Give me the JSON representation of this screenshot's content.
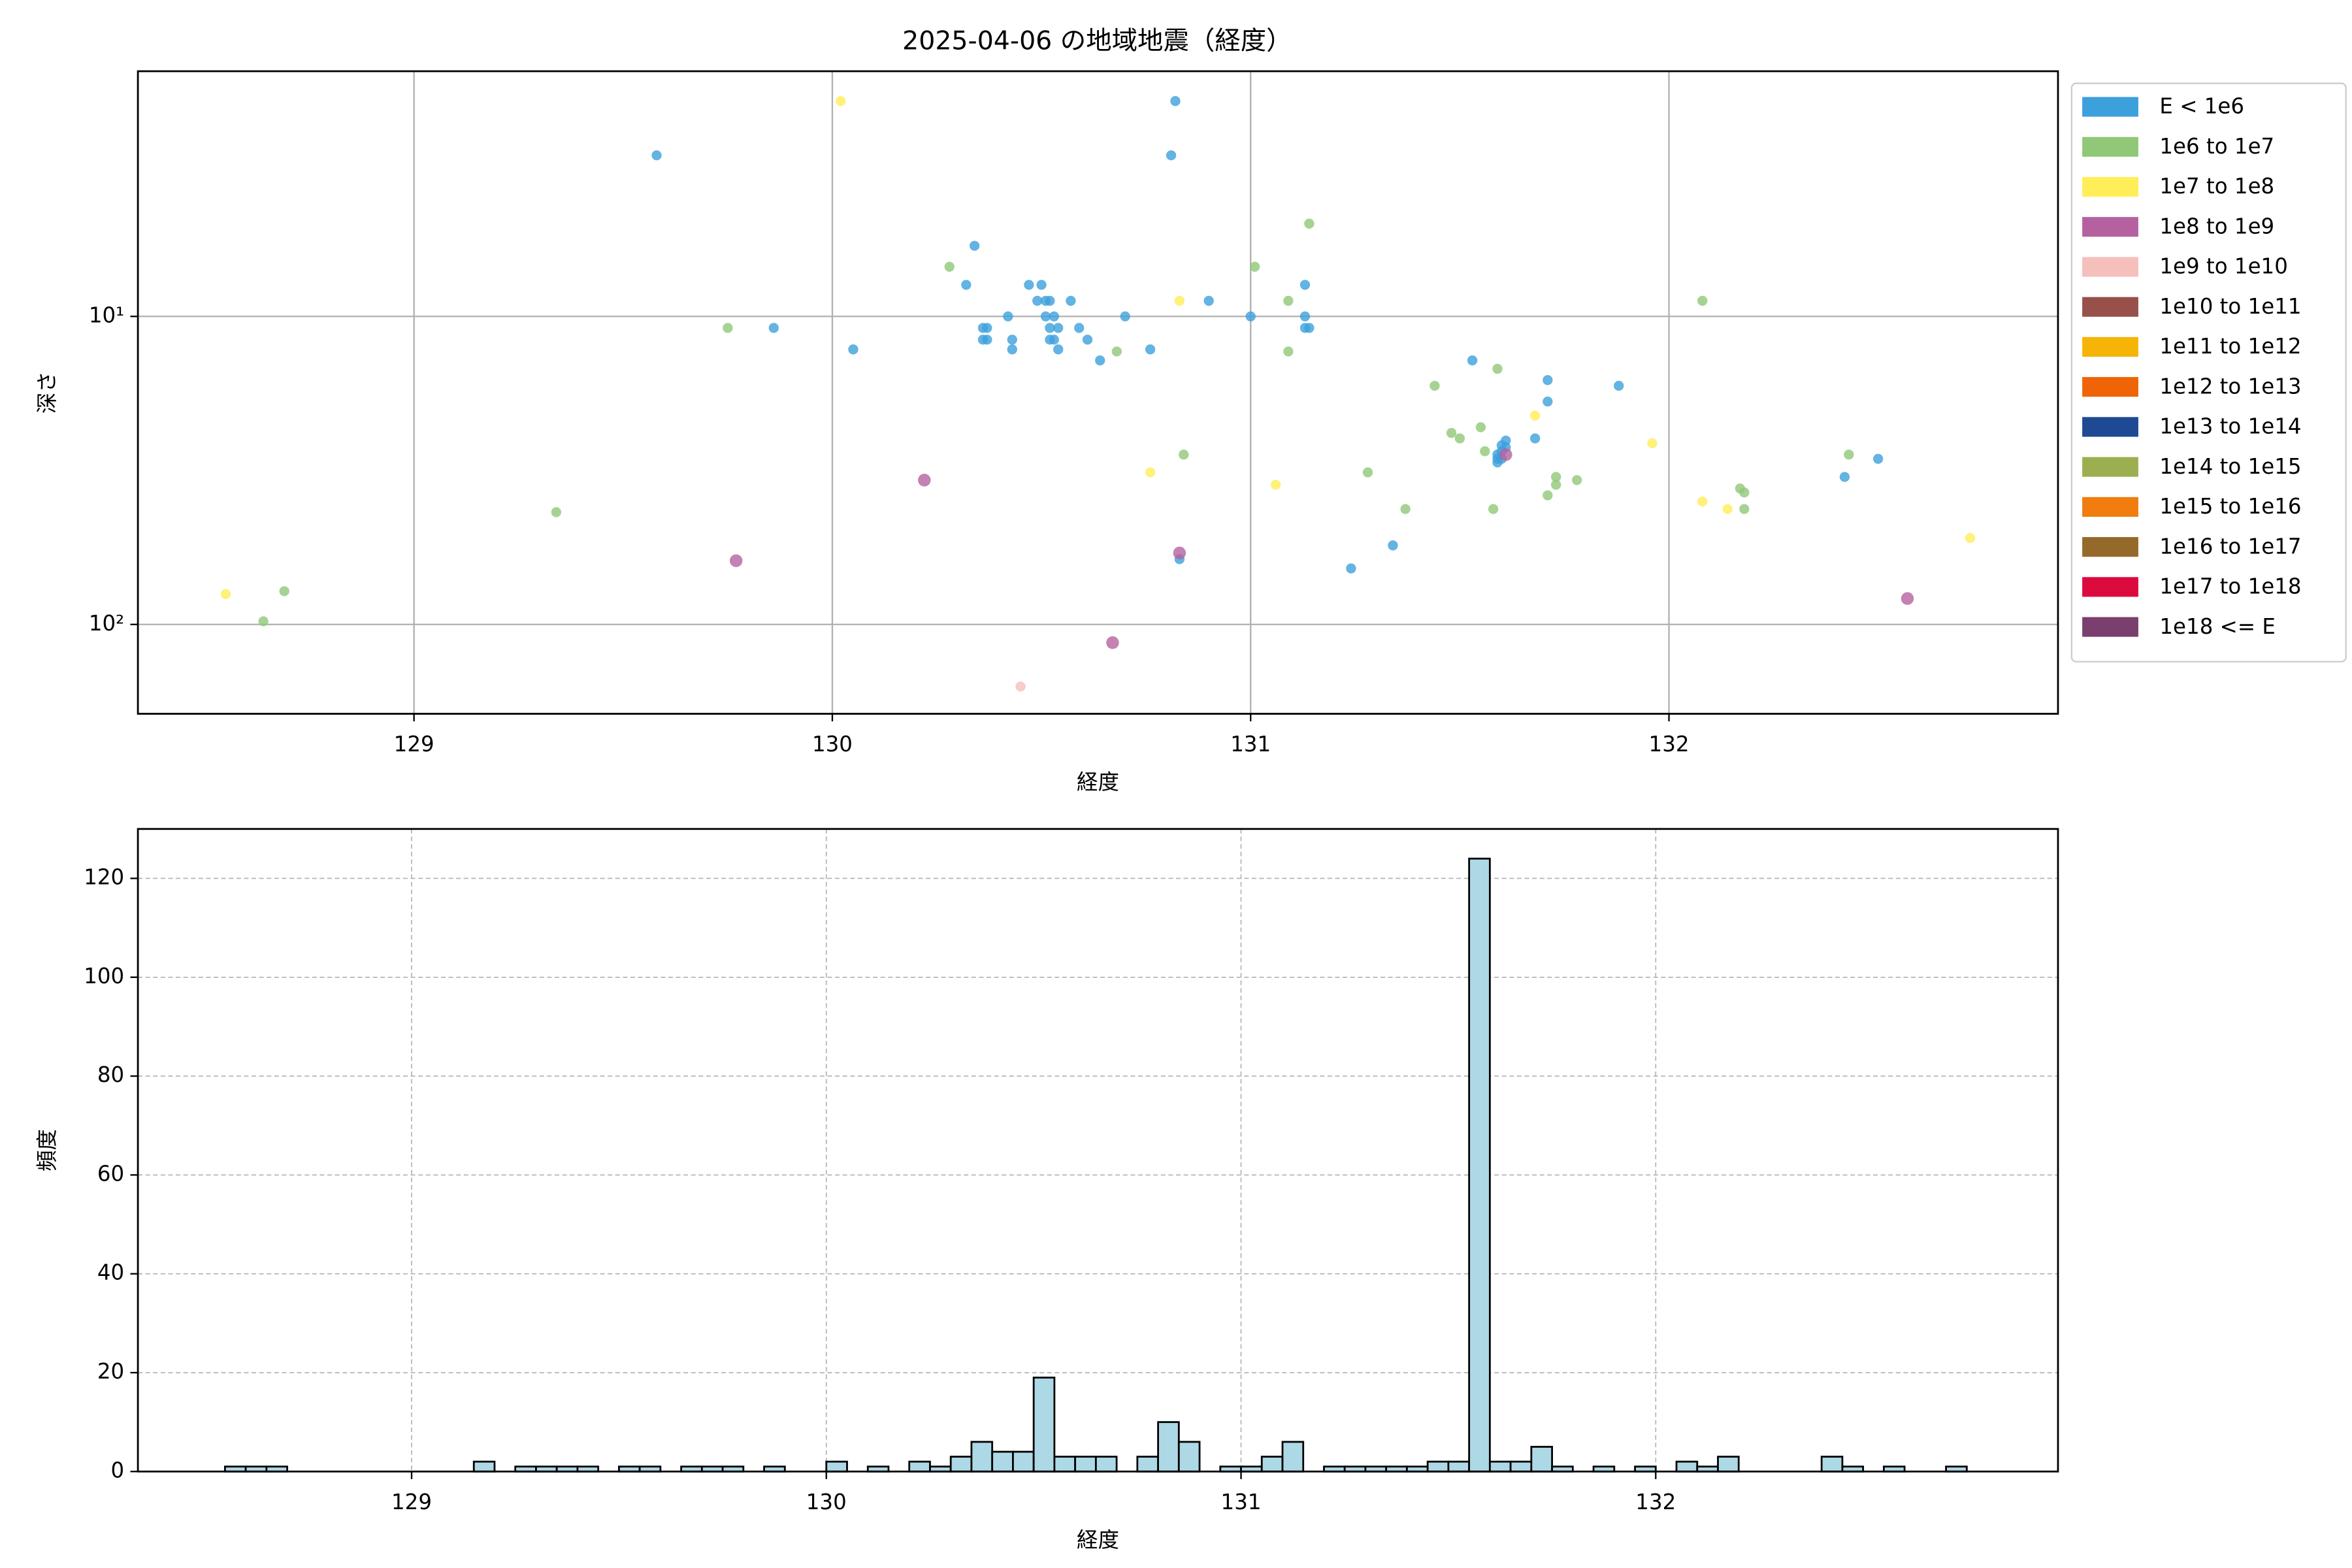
{
  "chart_data": [
    {
      "type": "scatter",
      "title": "2025-04-06 の地域地震（経度）",
      "xlabel": "経度",
      "ylabel": "深さ",
      "xlim": [
        128.34,
        132.93
      ],
      "xticks": [
        129,
        130,
        131,
        132
      ],
      "ylim": [
        195,
        1.6
      ],
      "yticks": [
        {
          "value": 10,
          "label": "10¹"
        },
        {
          "value": 100,
          "label": "10²"
        }
      ],
      "log_y": true,
      "grid": true,
      "legend": "outside right",
      "series": [
        {
          "name": "E < 1e6",
          "color": "#3ca0dc",
          "x": [
            129.58,
            130.82,
            130.81,
            130.34,
            130.32,
            130.36,
            130.37,
            130.36,
            130.37,
            129.86,
            130.05,
            130.42,
            130.43,
            130.43,
            130.47,
            130.5,
            130.49,
            130.51,
            130.52,
            130.51,
            130.53,
            130.52,
            130.54,
            130.52,
            130.53,
            130.54,
            130.57,
            130.59,
            130.61,
            130.64,
            130.7,
            130.76,
            130.9,
            131.0,
            131.13,
            131.13,
            131.13,
            131.14,
            131.24,
            131.34,
            131.53,
            131.61,
            131.59,
            131.6,
            131.59,
            131.61,
            131.6,
            131.6,
            131.59,
            131.68,
            131.71,
            131.71,
            131.88,
            132.42,
            132.5,
            130.83
          ],
          "values": [
            3.0,
            2.0,
            3.0,
            5.9,
            7.9,
            10.9,
            10.9,
            11.9,
            11.9,
            10.9,
            12.8,
            10,
            11.9,
            12.8,
            7.9,
            7.9,
            8.9,
            8.9,
            8.9,
            10,
            10,
            10.9,
            10.9,
            11.9,
            11.9,
            12.8,
            8.9,
            10.9,
            11.9,
            13.9,
            10,
            12.8,
            8.9,
            10,
            7.9,
            10,
            10.9,
            10.9,
            65.8,
            55.4,
            13.9,
            25.3,
            28.1,
            29,
            29.8,
            26.6,
            26.2,
            27.4,
            29,
            24.9,
            16.1,
            18.9,
            16.8,
            33.2,
            29,
            61.4
          ]
        },
        {
          "name": "1e6 to 1e7",
          "color": "#90c878",
          "x": [
            128.64,
            128.69,
            129.34,
            129.75,
            130.28,
            130.68,
            130.84,
            131.01,
            131.09,
            131.09,
            131.14,
            131.28,
            131.37,
            131.44,
            131.48,
            131.5,
            131.55,
            131.56,
            131.58,
            131.59,
            131.71,
            131.73,
            131.73,
            131.78,
            132.08,
            132.17,
            132.18,
            132.18,
            132.43
          ],
          "values": [
            97.7,
            78,
            43.2,
            10.9,
            6.9,
            13,
            28.1,
            6.9,
            8.9,
            13,
            5,
            32.1,
            42.2,
            16.8,
            23.9,
            24.9,
            22.9,
            27.4,
            42.2,
            14.8,
            38.1,
            33.2,
            35.2,
            34,
            8.9,
            36.2,
            37.3,
            42.2,
            28.1
          ]
        },
        {
          "name": "1e7 to 1e8",
          "color": "#ffee58",
          "x": [
            130.02,
            128.55,
            130.83,
            130.76,
            131.06,
            131.68,
            131.96,
            132.08,
            132.14,
            132.72
          ],
          "values": [
            2.0,
            79.7,
            8.9,
            32.1,
            35.2,
            21,
            25.8,
            39.9,
            42.2,
            52.4
          ]
        },
        {
          "name": "1e8 to 1e9",
          "color": "#b5619f",
          "x": [
            130.22,
            129.77,
            130.83,
            130.67,
            132.57,
            131.61
          ],
          "values": [
            34,
            62.1,
            58.6,
            114.6,
            82.4,
            28.1
          ]
        },
        {
          "name": "1e9 to 1e10",
          "color": "#f5bfbb",
          "x": [
            130.45
          ],
          "values": [
            159
          ]
        },
        {
          "name": "1e10 to 1e11",
          "color": "#98504a",
          "x": [],
          "values": []
        },
        {
          "name": "1e11 to 1e12",
          "color": "#f6b506",
          "x": [],
          "values": []
        },
        {
          "name": "1e12 to 1e13",
          "color": "#ee6406",
          "x": [],
          "values": []
        },
        {
          "name": "1e13 to 1e14",
          "color": "#1d4a93",
          "x": [],
          "values": []
        },
        {
          "name": "1e14 to 1e15",
          "color": "#9caf50",
          "x": [],
          "values": []
        },
        {
          "name": "1e15 to 1e16",
          "color": "#f07d0e",
          "x": [],
          "values": []
        },
        {
          "name": "1e16 to 1e17",
          "color": "#95692a",
          "x": [],
          "values": []
        },
        {
          "name": "1e17 to 1e18",
          "color": "#dc0b3e",
          "x": [],
          "values": []
        },
        {
          "name": "1e18 <= E",
          "color": "#7a3f6e",
          "x": [],
          "values": []
        }
      ]
    },
    {
      "type": "histogram",
      "xlabel": "経度",
      "ylabel": "頻度",
      "xlim": [
        128.34,
        132.97
      ],
      "xticks": [
        129,
        130,
        131,
        132
      ],
      "ylim": [
        0,
        130
      ],
      "yticks": [
        0,
        20,
        40,
        60,
        80,
        100,
        120
      ],
      "grid": true,
      "grid_style": "dashed",
      "color": "#add8e6",
      "edgecolor": "#000000",
      "bins": [
        128.55,
        128.6,
        128.65,
        128.7,
        128.75,
        128.8,
        128.85,
        128.9,
        128.95,
        129,
        129.05,
        129.1,
        129.15,
        129.2,
        129.25,
        129.3,
        129.35,
        129.4,
        129.45,
        129.5,
        129.55,
        129.6,
        129.65,
        129.7,
        129.75,
        129.8,
        129.85,
        129.9,
        129.95,
        130,
        130.05,
        130.1,
        130.15,
        130.2,
        130.25,
        130.3,
        130.35,
        130.4,
        130.45,
        130.5,
        130.55,
        130.6,
        130.65,
        130.7,
        130.75,
        130.8,
        130.85,
        130.9,
        130.95,
        131,
        131.05,
        131.1,
        131.15,
        131.2,
        131.25,
        131.3,
        131.35,
        131.4,
        131.45,
        131.5,
        131.55,
        131.6,
        131.65,
        131.7,
        131.75,
        131.8,
        131.85,
        131.9,
        131.95,
        132,
        132.05,
        132.1,
        132.15,
        132.2,
        132.25,
        132.3,
        132.35,
        132.4,
        132.45,
        132.5,
        132.55,
        132.6,
        132.65,
        132.7,
        132.75
      ],
      "values": [
        1,
        1,
        1,
        0,
        0,
        0,
        0,
        0,
        0,
        0,
        0,
        0,
        2,
        0,
        1,
        1,
        1,
        1,
        0,
        1,
        1,
        0,
        1,
        1,
        1,
        0,
        1,
        0,
        0,
        2,
        0,
        1,
        0,
        2,
        1,
        3,
        6,
        4,
        4,
        19,
        3,
        3,
        3,
        0,
        3,
        10,
        6,
        0,
        1,
        1,
        3,
        6,
        0,
        1,
        1,
        1,
        1,
        1,
        2,
        2,
        124,
        2,
        2,
        5,
        1,
        0,
        1,
        0,
        1,
        0,
        2,
        1,
        3,
        0,
        0,
        0,
        0,
        3,
        1,
        0,
        1,
        0,
        0,
        1
      ]
    }
  ]
}
